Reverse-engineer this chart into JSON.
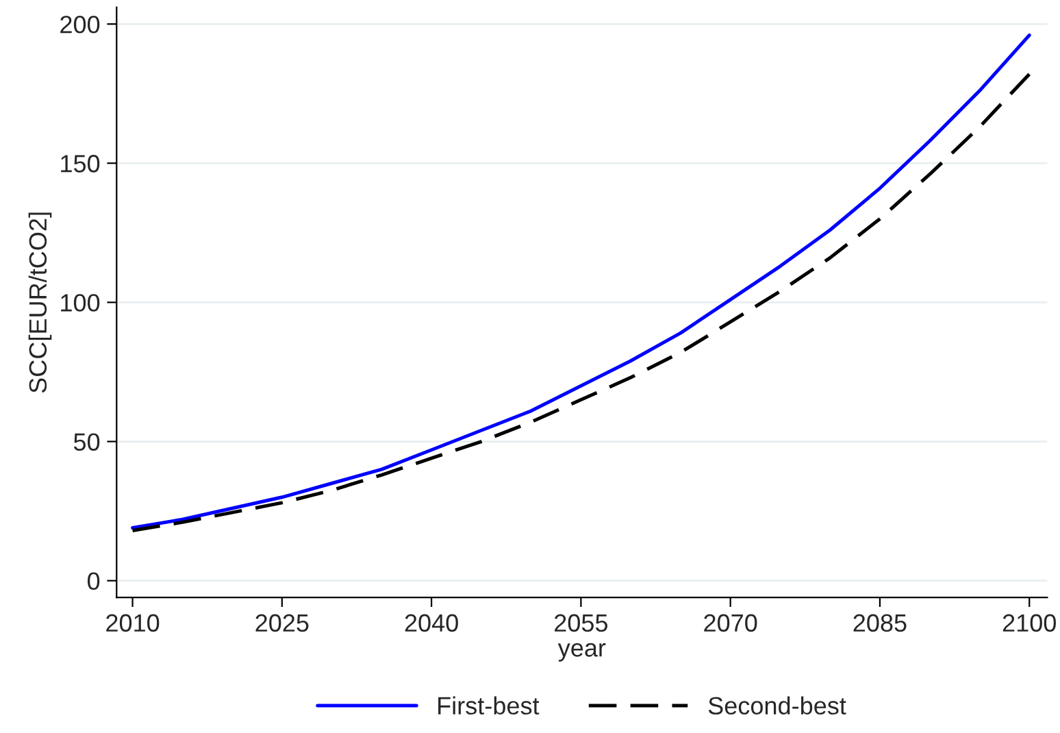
{
  "chart_data": {
    "type": "line",
    "xlabel": "year",
    "ylabel": "SCC[EUR/tCO2]",
    "x": [
      2010,
      2015,
      2020,
      2025,
      2030,
      2035,
      2040,
      2045,
      2050,
      2055,
      2060,
      2065,
      2070,
      2075,
      2080,
      2085,
      2090,
      2095,
      2100
    ],
    "series": [
      {
        "name": "First-best",
        "color": "#0000ff",
        "line_style": "solid",
        "values": [
          19,
          22,
          26,
          30,
          35,
          40,
          47,
          54,
          61,
          70,
          79,
          89,
          101,
          113,
          126,
          141,
          158,
          176,
          196
        ]
      },
      {
        "name": "Second-best",
        "color": "#000000",
        "line_style": "dashed",
        "values": [
          18,
          21,
          24.5,
          28,
          32.5,
          38,
          44,
          50,
          57,
          65,
          73,
          82,
          93,
          104,
          116,
          130,
          146,
          163,
          182
        ]
      }
    ],
    "xlim": [
      2008.4,
      2101.8
    ],
    "ylim": [
      -6,
      206
    ],
    "xticks": [
      2010,
      2025,
      2040,
      2055,
      2070,
      2085,
      2100
    ],
    "yticks": [
      0,
      50,
      100,
      150,
      200
    ],
    "grid": "y",
    "legend": "bottom",
    "marker": "none"
  }
}
